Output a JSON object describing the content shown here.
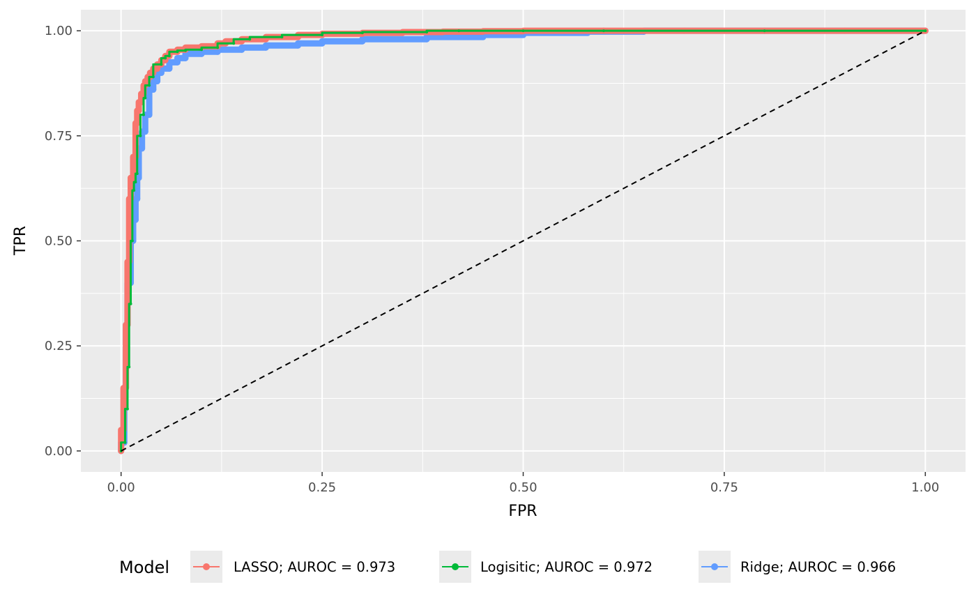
{
  "chart_data": {
    "type": "line",
    "title": "",
    "xlabel": "FPR",
    "ylabel": "TPR",
    "xlim": [
      -0.05,
      1.05
    ],
    "ylim": [
      -0.05,
      1.05
    ],
    "x_ticks": [
      "0.00",
      "0.25",
      "0.50",
      "0.75",
      "1.00"
    ],
    "y_ticks": [
      "0.00",
      "0.25",
      "0.50",
      "0.75",
      "1.00"
    ],
    "x_tick_values": [
      0,
      0.25,
      0.5,
      0.75,
      1
    ],
    "y_tick_values": [
      0,
      0.25,
      0.5,
      0.75,
      1
    ],
    "grid": true,
    "background": "#ebebeb",
    "legend": {
      "title": "Model",
      "position": "bottom"
    },
    "series": [
      {
        "name": "LASSO; AUROC = 0.973",
        "color": "#f8766d",
        "x": [
          0,
          0.003,
          0.006,
          0.008,
          0.01,
          0.012,
          0.015,
          0.018,
          0.02,
          0.022,
          0.025,
          0.028,
          0.03,
          0.033,
          0.036,
          0.04,
          0.045,
          0.05,
          0.055,
          0.06,
          0.07,
          0.08,
          0.1,
          0.12,
          0.13,
          0.15,
          0.18,
          0.22,
          0.25,
          0.3,
          0.35,
          0.4,
          0.45,
          0.5,
          0.6,
          0.7,
          0.8,
          0.9,
          1.0
        ],
        "y": [
          0,
          0.05,
          0.15,
          0.3,
          0.45,
          0.6,
          0.65,
          0.7,
          0.78,
          0.81,
          0.83,
          0.85,
          0.87,
          0.88,
          0.89,
          0.9,
          0.91,
          0.92,
          0.93,
          0.94,
          0.95,
          0.955,
          0.96,
          0.963,
          0.97,
          0.975,
          0.98,
          0.985,
          0.99,
          0.993,
          0.995,
          0.997,
          0.998,
          0.999,
          1.0,
          1.0,
          1.0,
          1.0,
          1.0
        ]
      },
      {
        "name": "Logisitic; AUROC = 0.972",
        "color": "#00ba38",
        "x": [
          0,
          0.005,
          0.008,
          0.01,
          0.012,
          0.014,
          0.016,
          0.018,
          0.02,
          0.024,
          0.028,
          0.03,
          0.035,
          0.04,
          0.05,
          0.055,
          0.06,
          0.07,
          0.08,
          0.1,
          0.12,
          0.14,
          0.16,
          0.2,
          0.25,
          0.3,
          0.38,
          0.42,
          0.5,
          0.6,
          0.8,
          1.0
        ],
        "y": [
          0,
          0.02,
          0.1,
          0.2,
          0.35,
          0.5,
          0.62,
          0.64,
          0.66,
          0.75,
          0.8,
          0.84,
          0.87,
          0.89,
          0.92,
          0.935,
          0.94,
          0.95,
          0.953,
          0.955,
          0.96,
          0.97,
          0.98,
          0.985,
          0.99,
          0.995,
          0.997,
          1.0,
          1.0,
          1.0,
          1.0,
          1.0
        ]
      },
      {
        "name": "Ridge; AUROC = 0.966",
        "color": "#619cff",
        "x": [
          0,
          0.004,
          0.006,
          0.008,
          0.012,
          0.015,
          0.018,
          0.02,
          0.022,
          0.026,
          0.03,
          0.035,
          0.04,
          0.045,
          0.05,
          0.06,
          0.07,
          0.08,
          0.1,
          0.12,
          0.15,
          0.18,
          0.22,
          0.25,
          0.3,
          0.38,
          0.45,
          0.5,
          0.58,
          0.65,
          0.8,
          0.97,
          1.0
        ],
        "y": [
          0,
          0.02,
          0.15,
          0.3,
          0.4,
          0.5,
          0.55,
          0.6,
          0.65,
          0.72,
          0.76,
          0.8,
          0.86,
          0.88,
          0.9,
          0.91,
          0.925,
          0.935,
          0.945,
          0.95,
          0.955,
          0.96,
          0.965,
          0.97,
          0.975,
          0.98,
          0.985,
          0.99,
          0.995,
          0.998,
          1.0,
          1.0,
          1.0
        ]
      }
    ],
    "reference_line": {
      "x": [
        0,
        1
      ],
      "y": [
        0,
        1
      ],
      "style": "dashed",
      "color": "#000000"
    }
  }
}
